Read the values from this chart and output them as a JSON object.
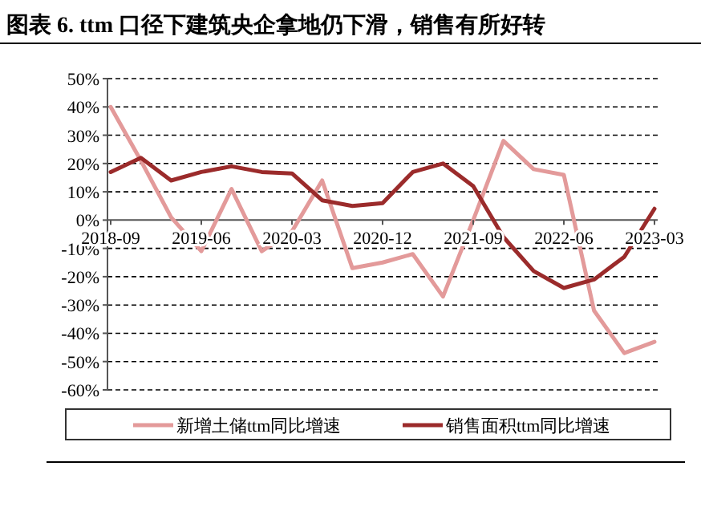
{
  "chart_data": {
    "type": "line",
    "title": "图表 6. ttm 口径下建筑央企拿地仍下滑，销售有所好转",
    "categories": [
      "2018-09",
      null,
      null,
      "2019-06",
      null,
      null,
      "2020-03",
      null,
      null,
      "2020-12",
      null,
      null,
      "2021-09",
      null,
      null,
      "2022-06",
      null,
      null,
      "2023-03"
    ],
    "series": [
      {
        "name": "新增土储ttm同比增速",
        "color": "#e39a9a",
        "values": [
          40,
          21,
          1,
          -11,
          11,
          -11,
          -4,
          14,
          -17,
          -15,
          -12,
          -27,
          0,
          28,
          18,
          16,
          -32,
          -47,
          -43
        ]
      },
      {
        "name": "销售面积ttm同比增速",
        "color": "#9b2b2b",
        "values": [
          17,
          22,
          14,
          17,
          19,
          17,
          16.5,
          7,
          5,
          6,
          17,
          20,
          12,
          -6,
          -18,
          -24,
          -21,
          -13,
          4
        ]
      }
    ],
    "ylim": [
      -60,
      50
    ],
    "yticks": [
      {
        "value": -60,
        "label": "-60%"
      },
      {
        "value": -50,
        "label": "-50%"
      },
      {
        "value": -40,
        "label": "-40%"
      },
      {
        "value": -30,
        "label": "-30%"
      },
      {
        "value": -20,
        "label": "-20%"
      },
      {
        "value": -10,
        "label": "-10%"
      },
      {
        "value": 0,
        "label": "0%"
      },
      {
        "value": 10,
        "label": "10%"
      },
      {
        "value": 20,
        "label": "20%"
      },
      {
        "value": 30,
        "label": "30%"
      },
      {
        "value": 40,
        "label": "40%"
      },
      {
        "value": 50,
        "label": "50%"
      }
    ],
    "grid": "y",
    "legend": "bottom",
    "line_style": "solid",
    "marker": "none"
  }
}
